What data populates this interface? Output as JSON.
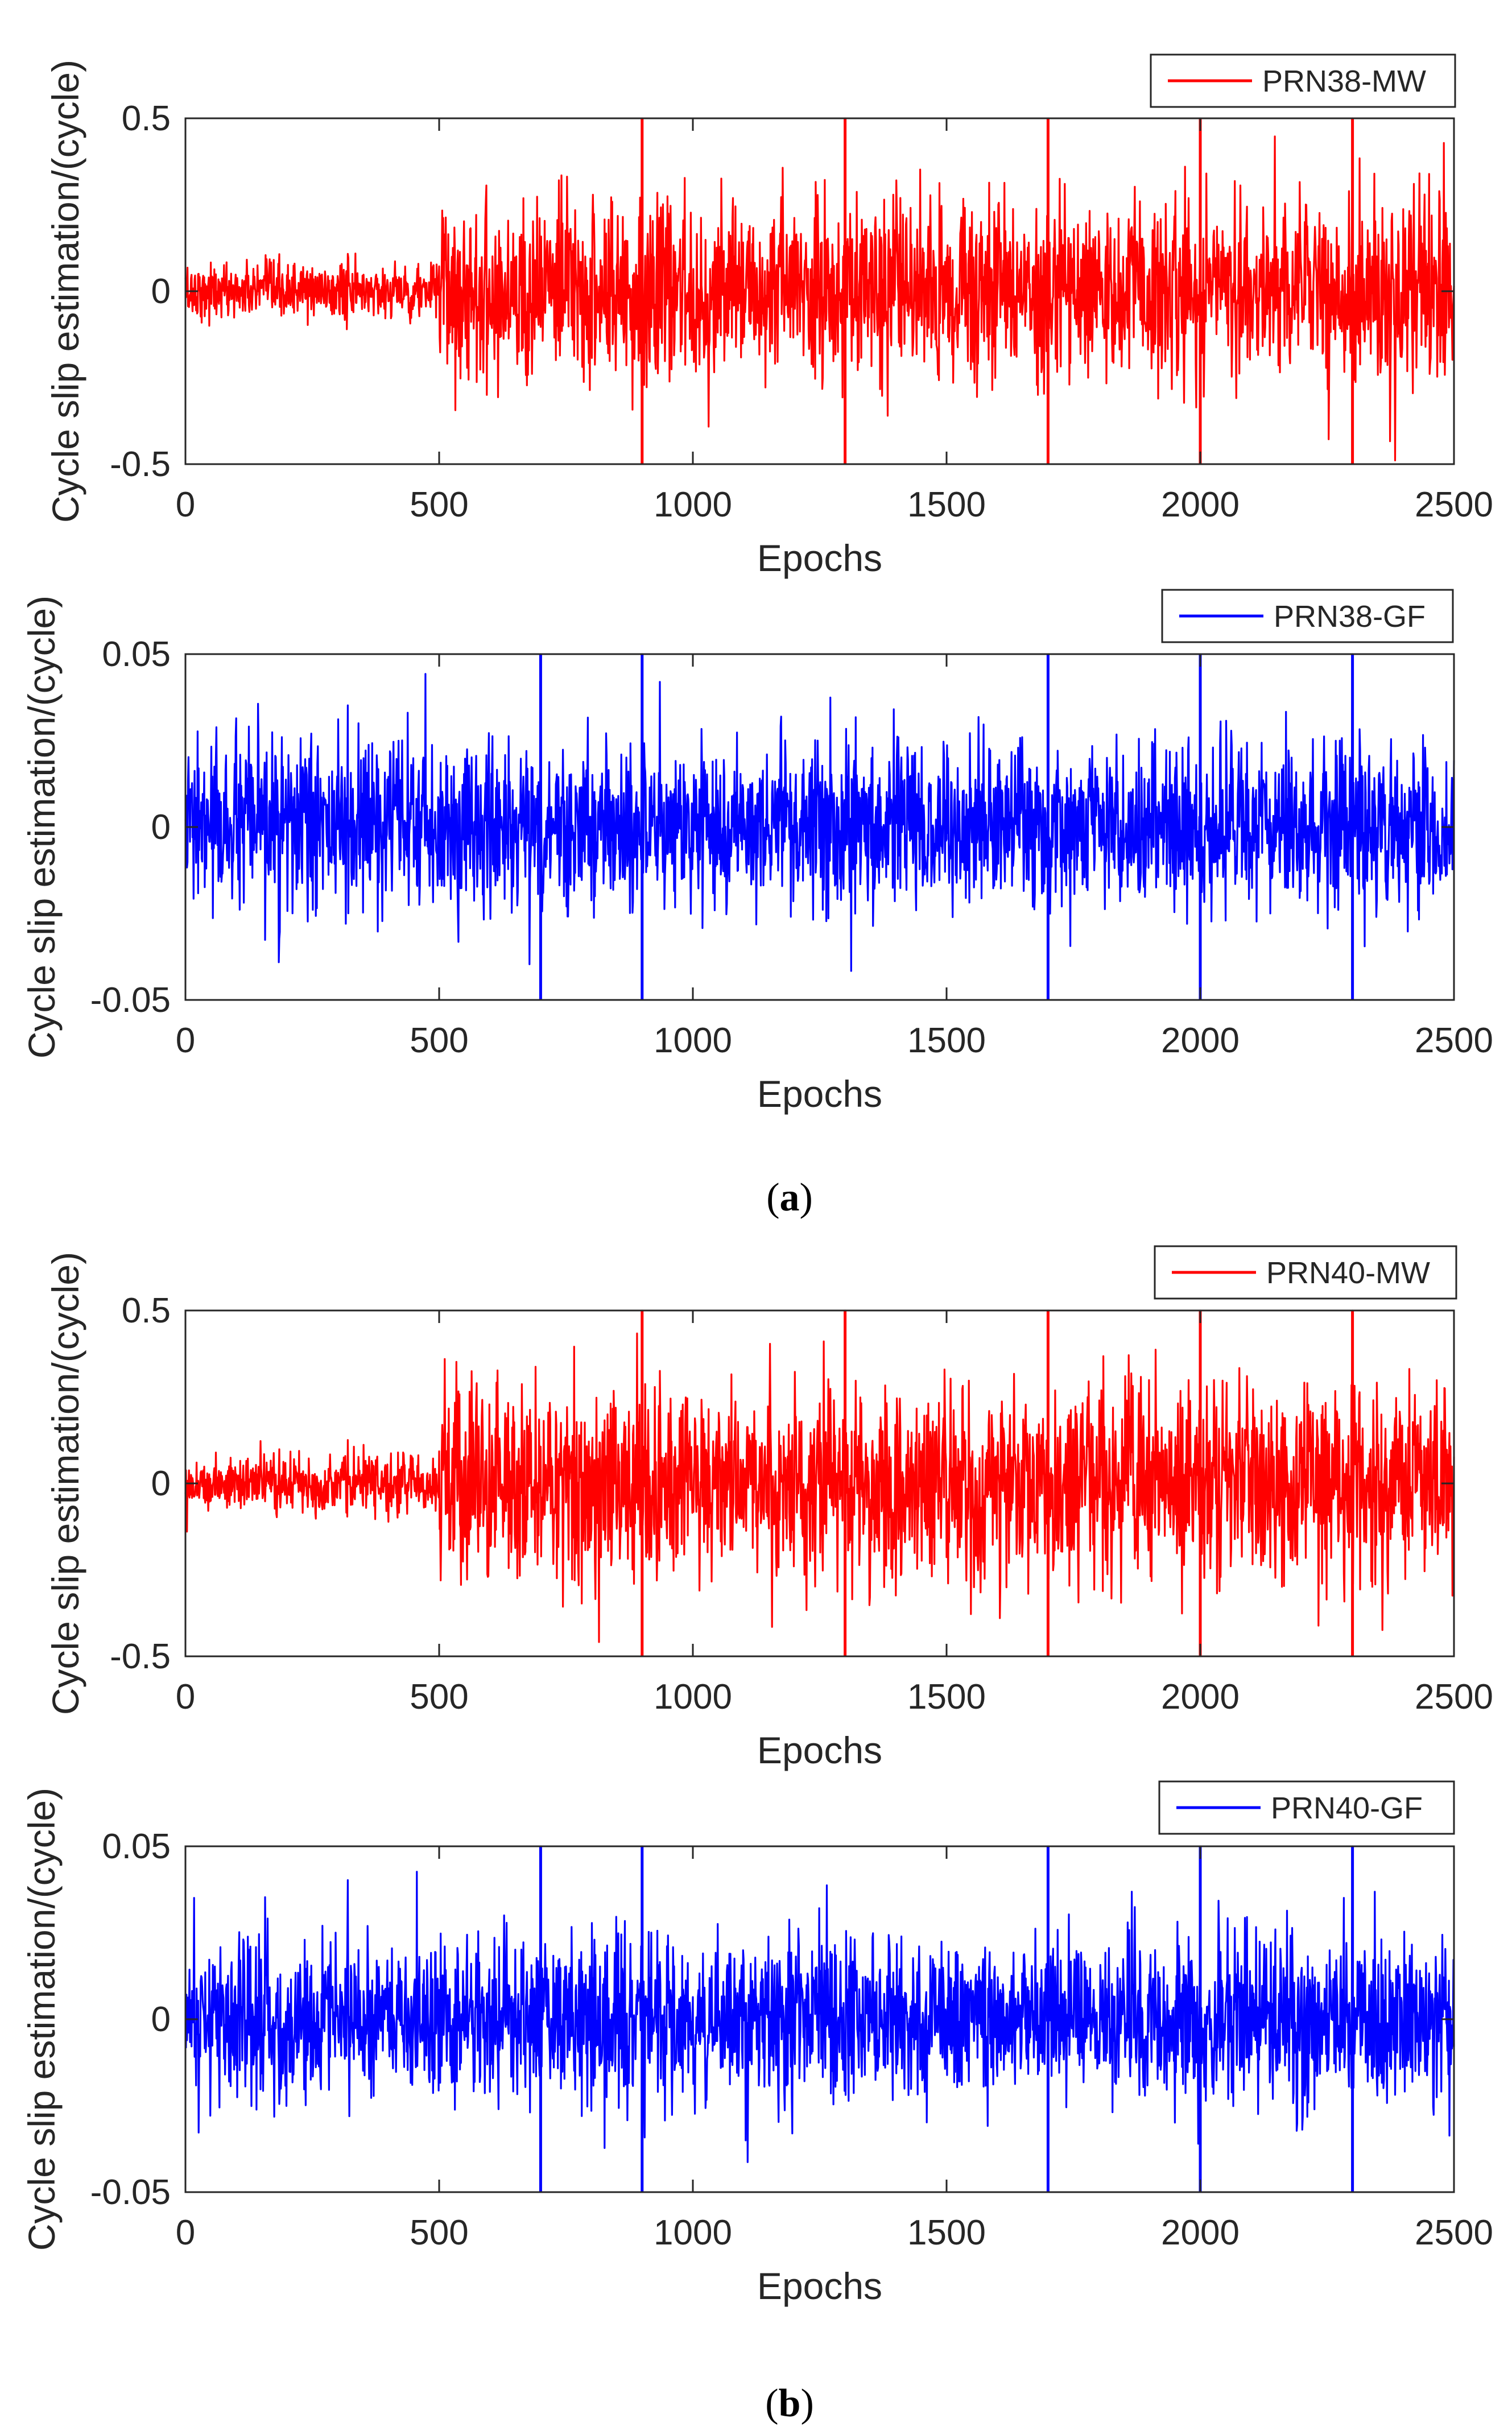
{
  "figure": {
    "captions": [
      {
        "open": "(",
        "letter": "a",
        "close": ")"
      },
      {
        "open": "(",
        "letter": "b",
        "close": ")"
      }
    ]
  },
  "chart_data": [
    {
      "type": "line",
      "panel": "a-top",
      "series": [
        {
          "name": "PRN38-MW",
          "color": "#ff0000",
          "noise_std_before": 0.04,
          "noise_std_after": 0.13,
          "step_epoch": 500,
          "spikes": [
            900,
            1300,
            1700,
            2000,
            2300
          ]
        }
      ],
      "xlabel": "Epochs",
      "ylabel": "Cycle slip estimation/(cycle)",
      "xlim": [
        0,
        2500
      ],
      "ylim": [
        -0.5,
        0.5
      ],
      "xticks": [
        0,
        500,
        1000,
        1500,
        2000,
        2500
      ],
      "xtick_labels": [
        "0",
        "500",
        "1000",
        "1500",
        "2000",
        "2500"
      ],
      "yticks": [
        -0.5,
        0,
        0.5
      ],
      "ytick_labels": [
        "-0.5",
        "0",
        "0.5"
      ],
      "legend_position": "top-right",
      "grid": false
    },
    {
      "type": "line",
      "panel": "a-bottom",
      "series": [
        {
          "name": "PRN38-GF",
          "color": "#0000ff",
          "noise_std": 0.012,
          "spikes": [
            700,
            900,
            1700,
            2000,
            2300
          ]
        }
      ],
      "xlabel": "Epochs",
      "ylabel": "Cycle slip estimation/(cycle)",
      "xlim": [
        0,
        2500
      ],
      "ylim": [
        -0.05,
        0.05
      ],
      "xticks": [
        0,
        500,
        1000,
        1500,
        2000,
        2500
      ],
      "xtick_labels": [
        "0",
        "500",
        "1000",
        "1500",
        "2000",
        "2500"
      ],
      "yticks": [
        -0.05,
        0,
        0.05
      ],
      "ytick_labels": [
        "-0.05",
        "0",
        "0.05"
      ],
      "legend_position": "top-right",
      "grid": false
    },
    {
      "type": "line",
      "panel": "b-top",
      "series": [
        {
          "name": "PRN40-MW",
          "color": "#ff0000",
          "noise_std_before": 0.04,
          "noise_std_after": 0.14,
          "step_epoch": 500,
          "spikes": [
            900,
            1300,
            1700,
            2000,
            2300
          ]
        }
      ],
      "xlabel": "Epochs",
      "ylabel": "Cycle slip estimation/(cycle)",
      "xlim": [
        0,
        2500
      ],
      "ylim": [
        -0.5,
        0.5
      ],
      "xticks": [
        0,
        500,
        1000,
        1500,
        2000,
        2500
      ],
      "xtick_labels": [
        "0",
        "500",
        "1000",
        "1500",
        "2000",
        "2500"
      ],
      "yticks": [
        -0.5,
        0,
        0.5
      ],
      "ytick_labels": [
        "-0.5",
        "0",
        "0.5"
      ],
      "legend_position": "top-right",
      "grid": false
    },
    {
      "type": "line",
      "panel": "b-bottom",
      "series": [
        {
          "name": "PRN40-GF",
          "color": "#0000ff",
          "noise_std": 0.012,
          "spikes": [
            700,
            900,
            1700,
            2000,
            2300
          ]
        }
      ],
      "xlabel": "Epochs",
      "ylabel": "Cycle slip estimation/(cycle)",
      "xlim": [
        0,
        2500
      ],
      "ylim": [
        -0.05,
        0.05
      ],
      "xticks": [
        0,
        500,
        1000,
        1500,
        2000,
        2500
      ],
      "xtick_labels": [
        "0",
        "500",
        "1000",
        "1500",
        "2000",
        "2500"
      ],
      "yticks": [
        -0.05,
        0,
        0.05
      ],
      "ytick_labels": [
        "-0.05",
        "0",
        "0.05"
      ],
      "legend_position": "top-right",
      "grid": false
    }
  ]
}
